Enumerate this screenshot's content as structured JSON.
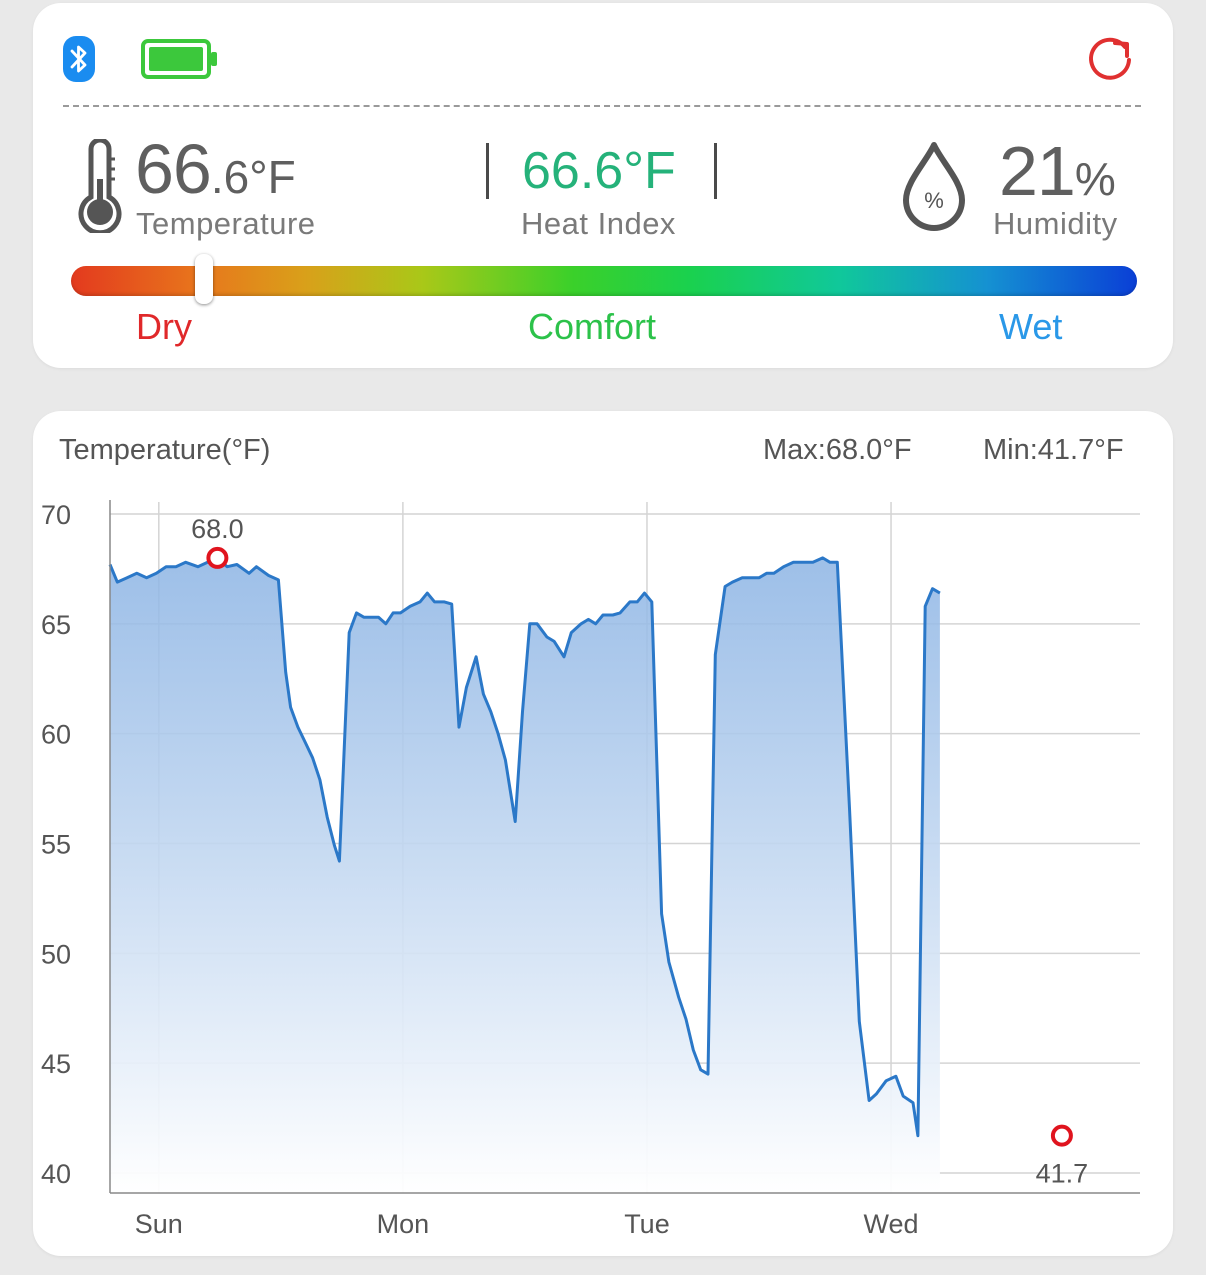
{
  "status_bar": {
    "bluetooth_icon": "bluetooth-icon",
    "battery_icon": "battery-full-icon",
    "refresh_icon": "refresh-icon",
    "colors": {
      "bluetooth": "#1a8cf0",
      "battery": "#3cc83c",
      "refresh": "#e03030"
    }
  },
  "readings": {
    "temperature": {
      "int": "66",
      "dec": ".6",
      "unit": "°F",
      "label": "Temperature",
      "icon": "thermometer-icon"
    },
    "heat_index": {
      "value": "66.6°F",
      "label": "Heat Index",
      "color": "#25b27a"
    },
    "humidity": {
      "value": "21",
      "unit": "%",
      "label": "Humidity",
      "icon": "humidity-drop-icon"
    }
  },
  "comfort_scale": {
    "labels": {
      "dry": "Dry",
      "comfort": "Comfort",
      "wet": "Wet"
    },
    "colors": {
      "dry": "#e0282a",
      "comfort": "#2cc24a",
      "wet": "#2a98e8"
    },
    "position": 0.125
  },
  "chart_header": {
    "title": "Temperature(°F)",
    "max": "Max:68.0°F",
    "min": "Min:41.7°F"
  },
  "chart_data": {
    "type": "area",
    "ylim": [
      40,
      70
    ],
    "y_ticks": [
      "70",
      "65",
      "60",
      "55",
      "50",
      "45",
      "40"
    ],
    "x_ticks": [
      {
        "label": "Sun",
        "t": 0.2
      },
      {
        "label": "Mon",
        "t": 1.2
      },
      {
        "label": "Tue",
        "t": 2.2
      },
      {
        "label": "Wed",
        "t": 3.2
      }
    ],
    "x_range": [
      0,
      4.22
    ],
    "grid": true,
    "annotations": [
      {
        "label": "68.0",
        "t": 0.44,
        "y": 68.0
      },
      {
        "label": "41.7",
        "t": 3.9,
        "y": 41.7
      }
    ],
    "series": [
      {
        "line_color": "#2b78c8",
        "points": [
          [
            0.0,
            67.7
          ],
          [
            0.03,
            66.9
          ],
          [
            0.07,
            67.1
          ],
          [
            0.11,
            67.3
          ],
          [
            0.15,
            67.1
          ],
          [
            0.19,
            67.3
          ],
          [
            0.23,
            67.6
          ],
          [
            0.27,
            67.6
          ],
          [
            0.31,
            67.8
          ],
          [
            0.36,
            67.6
          ],
          [
            0.4,
            67.8
          ],
          [
            0.44,
            68.0
          ],
          [
            0.48,
            67.6
          ],
          [
            0.52,
            67.7
          ],
          [
            0.57,
            67.3
          ],
          [
            0.6,
            67.6
          ],
          [
            0.65,
            67.2
          ],
          [
            0.69,
            67.0
          ],
          [
            0.72,
            62.8
          ],
          [
            0.74,
            61.2
          ],
          [
            0.77,
            60.3
          ],
          [
            0.8,
            59.6
          ],
          [
            0.83,
            58.9
          ],
          [
            0.86,
            57.9
          ],
          [
            0.89,
            56.2
          ],
          [
            0.92,
            54.9
          ],
          [
            0.94,
            54.2
          ],
          [
            0.98,
            64.6
          ],
          [
            1.01,
            65.5
          ],
          [
            1.04,
            65.3
          ],
          [
            1.07,
            65.3
          ],
          [
            1.1,
            65.3
          ],
          [
            1.13,
            65.0
          ],
          [
            1.16,
            65.5
          ],
          [
            1.19,
            65.5
          ],
          [
            1.23,
            65.8
          ],
          [
            1.27,
            66.0
          ],
          [
            1.3,
            66.4
          ],
          [
            1.33,
            66.0
          ],
          [
            1.37,
            66.0
          ],
          [
            1.4,
            65.9
          ],
          [
            1.43,
            60.3
          ],
          [
            1.46,
            62.1
          ],
          [
            1.5,
            63.5
          ],
          [
            1.53,
            61.8
          ],
          [
            1.56,
            61.0
          ],
          [
            1.59,
            60.0
          ],
          [
            1.62,
            58.8
          ],
          [
            1.66,
            56.0
          ],
          [
            1.69,
            61.0
          ],
          [
            1.72,
            65.0
          ],
          [
            1.75,
            65.0
          ],
          [
            1.79,
            64.4
          ],
          [
            1.82,
            64.2
          ],
          [
            1.86,
            63.5
          ],
          [
            1.89,
            64.6
          ],
          [
            1.93,
            65.0
          ],
          [
            1.96,
            65.2
          ],
          [
            1.99,
            65.0
          ],
          [
            2.02,
            65.4
          ],
          [
            2.06,
            65.4
          ],
          [
            2.09,
            65.5
          ],
          [
            2.13,
            66.0
          ],
          [
            2.16,
            66.0
          ],
          [
            2.19,
            66.4
          ],
          [
            2.22,
            66.0
          ],
          [
            2.26,
            51.8
          ],
          [
            2.29,
            49.6
          ],
          [
            2.33,
            48.0
          ],
          [
            2.36,
            47.0
          ],
          [
            2.39,
            45.6
          ],
          [
            2.42,
            44.7
          ],
          [
            2.45,
            44.5
          ],
          [
            2.48,
            63.6
          ],
          [
            2.52,
            66.7
          ],
          [
            2.55,
            66.9
          ],
          [
            2.59,
            67.1
          ],
          [
            2.62,
            67.1
          ],
          [
            2.66,
            67.1
          ],
          [
            2.69,
            67.3
          ],
          [
            2.72,
            67.3
          ],
          [
            2.76,
            67.6
          ],
          [
            2.8,
            67.8
          ],
          [
            2.84,
            67.8
          ],
          [
            2.88,
            67.8
          ],
          [
            2.92,
            68.0
          ],
          [
            2.95,
            67.8
          ],
          [
            2.98,
            67.8
          ],
          [
            3.03,
            56.6
          ],
          [
            3.07,
            46.9
          ],
          [
            3.11,
            43.3
          ],
          [
            3.14,
            43.6
          ],
          [
            3.18,
            44.2
          ],
          [
            3.22,
            44.4
          ],
          [
            3.25,
            43.5
          ],
          [
            3.29,
            43.2
          ],
          [
            3.31,
            41.7
          ],
          [
            3.34,
            65.8
          ],
          [
            3.37,
            66.6
          ],
          [
            3.4,
            66.4
          ]
        ]
      }
    ]
  }
}
